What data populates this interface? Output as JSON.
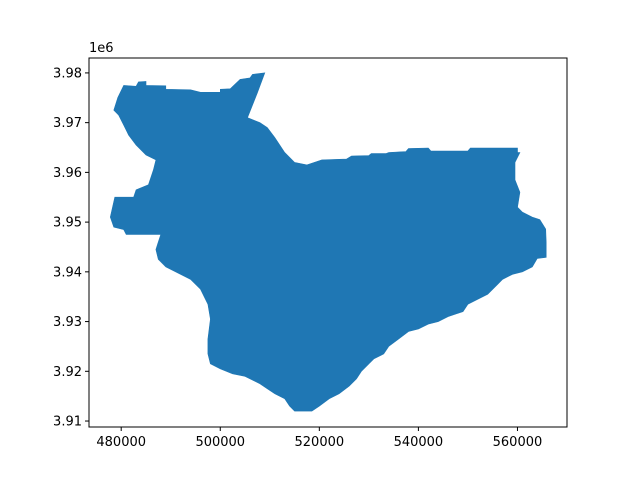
{
  "chart_data": {
    "type": "area",
    "title": "",
    "xlabel": "",
    "ylabel": "",
    "y_offset_label": "1e6",
    "xlim": [
      473500,
      570000
    ],
    "ylim": [
      3908800,
      3983000
    ],
    "x_ticks": [
      480000,
      500000,
      520000,
      540000,
      560000
    ],
    "x_tick_labels": [
      "480000",
      "500000",
      "520000",
      "540000",
      "560000"
    ],
    "y_ticks": [
      3910000,
      3920000,
      3930000,
      3940000,
      3950000,
      3960000,
      3970000,
      3980000
    ],
    "y_tick_labels": [
      "3.91",
      "3.92",
      "3.93",
      "3.94",
      "3.95",
      "3.96",
      "3.97",
      "3.98"
    ],
    "grid": false,
    "fill_color": "#1f77b4",
    "polygon": [
      [
        479300,
        3975000
      ],
      [
        480500,
        3977500
      ],
      [
        483000,
        3977300
      ],
      [
        483500,
        3978200
      ],
      [
        485000,
        3978300
      ],
      [
        485000,
        3977500
      ],
      [
        489000,
        3977400
      ],
      [
        489000,
        3976700
      ],
      [
        494000,
        3976600
      ],
      [
        496000,
        3976100
      ],
      [
        500000,
        3976100
      ],
      [
        500000,
        3976700
      ],
      [
        502000,
        3976800
      ],
      [
        504000,
        3978700
      ],
      [
        506000,
        3979000
      ],
      [
        506500,
        3979700
      ],
      [
        509000,
        3980000
      ],
      [
        507500,
        3976000
      ],
      [
        505500,
        3971000
      ],
      [
        508000,
        3970000
      ],
      [
        509500,
        3969000
      ],
      [
        511000,
        3967000
      ],
      [
        513000,
        3964000
      ],
      [
        515000,
        3962000
      ],
      [
        517500,
        3961500
      ],
      [
        519000,
        3962000
      ],
      [
        520500,
        3962500
      ],
      [
        525500,
        3962700
      ],
      [
        526500,
        3963300
      ],
      [
        530000,
        3963400
      ],
      [
        530500,
        3963800
      ],
      [
        533500,
        3963800
      ],
      [
        534000,
        3964000
      ],
      [
        537500,
        3964200
      ],
      [
        538000,
        3964800
      ],
      [
        542000,
        3964900
      ],
      [
        542500,
        3964300
      ],
      [
        550000,
        3964300
      ],
      [
        550500,
        3964900
      ],
      [
        560000,
        3964900
      ],
      [
        560000,
        3964000
      ],
      [
        560500,
        3964000
      ],
      [
        559500,
        3962000
      ],
      [
        559500,
        3958500
      ],
      [
        560500,
        3956000
      ],
      [
        560000,
        3953000
      ],
      [
        561000,
        3952000
      ],
      [
        563000,
        3951000
      ],
      [
        564500,
        3950500
      ],
      [
        565700,
        3948600
      ],
      [
        565800,
        3945900
      ],
      [
        565800,
        3942900
      ],
      [
        564000,
        3942700
      ],
      [
        563000,
        3941000
      ],
      [
        561000,
        3940000
      ],
      [
        559000,
        3939500
      ],
      [
        557000,
        3938500
      ],
      [
        556000,
        3937500
      ],
      [
        554000,
        3935500
      ],
      [
        552000,
        3934500
      ],
      [
        550000,
        3933500
      ],
      [
        549000,
        3932000
      ],
      [
        547500,
        3931500
      ],
      [
        546000,
        3931000
      ],
      [
        544000,
        3930000
      ],
      [
        542000,
        3929500
      ],
      [
        540000,
        3928500
      ],
      [
        538000,
        3928000
      ],
      [
        536000,
        3926500
      ],
      [
        534000,
        3925000
      ],
      [
        533000,
        3923500
      ],
      [
        531000,
        3922500
      ],
      [
        530000,
        3921500
      ],
      [
        528500,
        3920000
      ],
      [
        527500,
        3918500
      ],
      [
        526000,
        3917000
      ],
      [
        524000,
        3915500
      ],
      [
        522000,
        3914500
      ],
      [
        520000,
        3913000
      ],
      [
        518500,
        3912000
      ],
      [
        515000,
        3912000
      ],
      [
        514000,
        3913000
      ],
      [
        513000,
        3914500
      ],
      [
        511000,
        3915500
      ],
      [
        509500,
        3916500
      ],
      [
        508000,
        3917500
      ],
      [
        505000,
        3919000
      ],
      [
        502500,
        3919500
      ],
      [
        500000,
        3920500
      ],
      [
        498000,
        3921500
      ],
      [
        497500,
        3923500
      ],
      [
        497500,
        3926500
      ],
      [
        498000,
        3930500
      ],
      [
        497500,
        3933500
      ],
      [
        496000,
        3936500
      ],
      [
        494000,
        3938500
      ],
      [
        492000,
        3939500
      ],
      [
        489000,
        3941000
      ],
      [
        487500,
        3942500
      ],
      [
        487000,
        3944500
      ],
      [
        487500,
        3946000
      ],
      [
        488000,
        3947500
      ],
      [
        481000,
        3947500
      ],
      [
        480500,
        3948500
      ],
      [
        478500,
        3949000
      ],
      [
        477800,
        3951000
      ],
      [
        478700,
        3955000
      ],
      [
        482500,
        3955000
      ],
      [
        483000,
        3956500
      ],
      [
        485500,
        3957500
      ],
      [
        486500,
        3960500
      ],
      [
        487000,
        3962500
      ],
      [
        485000,
        3963500
      ],
      [
        483000,
        3965500
      ],
      [
        481500,
        3967500
      ],
      [
        480500,
        3969500
      ],
      [
        479500,
        3971500
      ],
      [
        478500,
        3972500
      ]
    ]
  }
}
